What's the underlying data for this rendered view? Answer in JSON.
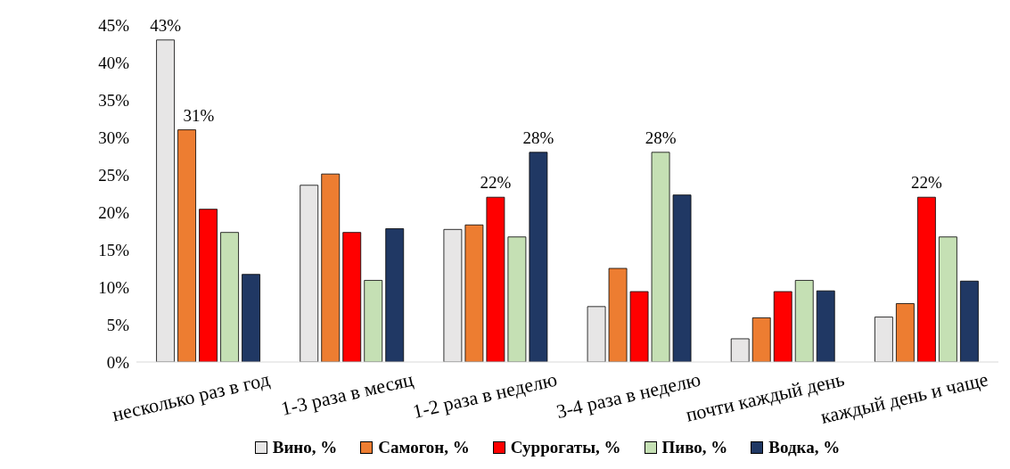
{
  "chart_data": {
    "type": "bar",
    "categories": [
      "несколько раз в год",
      "1-3 раза в месяц",
      "1-2 раза в неделю",
      "3-4 раза в неделю",
      "почти каждый день",
      "каждый день и чаще"
    ],
    "series": [
      {
        "name": "Вино, %",
        "color": "#e7e6e6",
        "values": [
          43,
          23.6,
          17.7,
          7.4,
          3.1,
          6.0
        ],
        "value_labels": [
          "43%",
          null,
          null,
          null,
          null,
          null
        ]
      },
      {
        "name": "Самогон, %",
        "color": "#ed7d31",
        "values": [
          31,
          25.1,
          18.3,
          12.5,
          5.9,
          7.8
        ],
        "value_labels": [
          "31%",
          null,
          null,
          null,
          null,
          null
        ]
      },
      {
        "name": "Суррогаты, %",
        "color": "#ff0000",
        "values": [
          20.4,
          17.3,
          22,
          9.4,
          9.4,
          22
        ],
        "value_labels": [
          null,
          null,
          "22%",
          null,
          null,
          "22%"
        ]
      },
      {
        "name": "Пиво, %",
        "color": "#c5e0b4",
        "values": [
          17.3,
          10.9,
          16.7,
          28,
          10.9,
          16.7
        ],
        "value_labels": [
          null,
          null,
          null,
          "28%",
          null,
          null
        ]
      },
      {
        "name": "Водка, %",
        "color": "#203864",
        "values": [
          11.7,
          17.8,
          28,
          22.3,
          9.5,
          10.8
        ],
        "value_labels": [
          null,
          null,
          "28%",
          null,
          null,
          null
        ]
      }
    ],
    "ylim": [
      0,
      45
    ],
    "yticks": [
      {
        "value": 0,
        "label": "0%"
      },
      {
        "value": 5,
        "label": "5%"
      },
      {
        "value": 10,
        "label": "10%"
      },
      {
        "value": 15,
        "label": "15%"
      },
      {
        "value": 20,
        "label": "20%"
      },
      {
        "value": 25,
        "label": "25%"
      },
      {
        "value": 30,
        "label": "30%"
      },
      {
        "value": 35,
        "label": "35%"
      },
      {
        "value": 40,
        "label": "40%"
      },
      {
        "value": 45,
        "label": "45%"
      }
    ],
    "grid": false,
    "legend": "bottom"
  }
}
